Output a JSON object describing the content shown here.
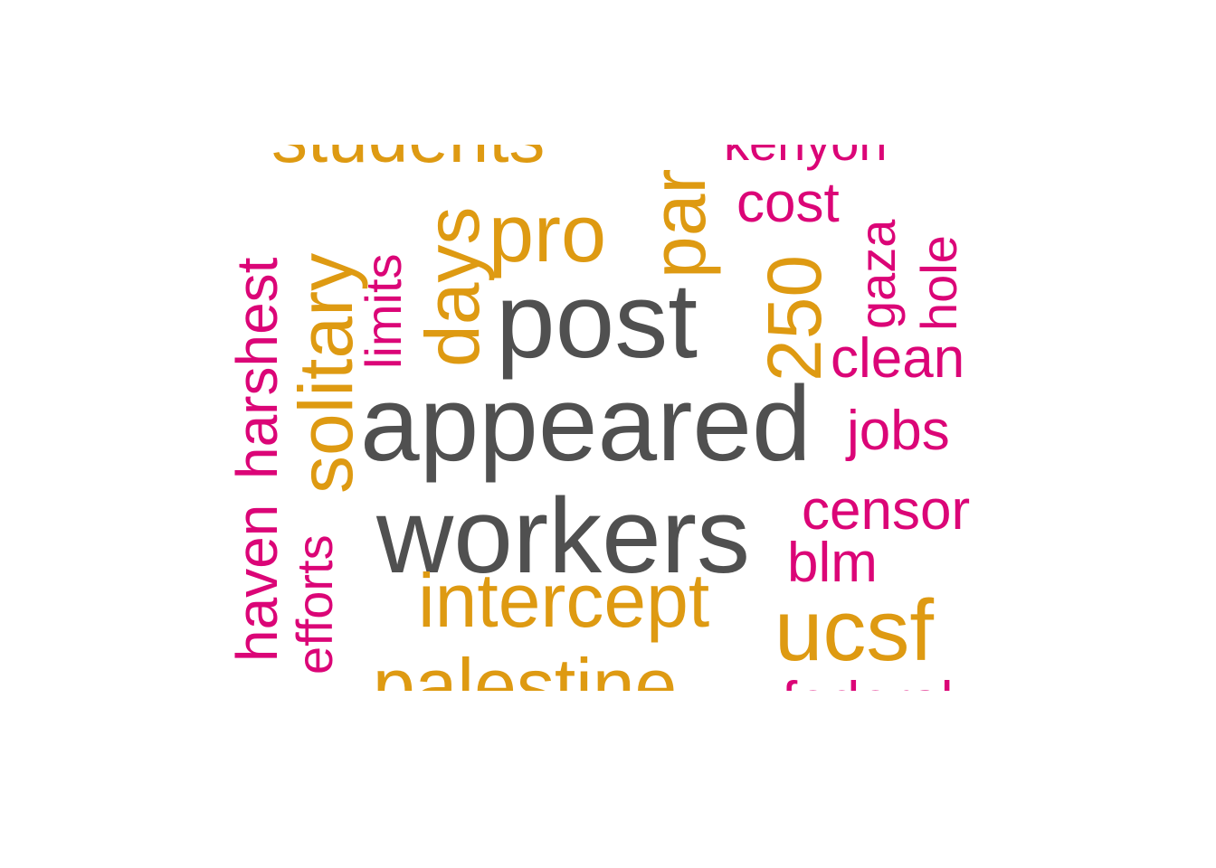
{
  "colors": {
    "dark": "#505050",
    "gold": "#DE9A12",
    "pink": "#DB0577"
  },
  "words": {
    "students": "students",
    "partial": "par",
    "kenyon": "kenyon",
    "cost": "cost",
    "gaza": "gaza",
    "hole": "hole",
    "pro": "pro",
    "days": "days",
    "limits": "limits",
    "solitary": "solitary",
    "harshest": "harshest",
    "post": "post",
    "number_250": "250",
    "clean": "clean",
    "appeared": "appeared",
    "jobs": "jobs",
    "workers": "workers",
    "censor": "censor",
    "blm": "blm",
    "haven": "haven",
    "efforts": "efforts",
    "intercept": "intercept",
    "ucsf": "ucsf",
    "palestine": "palestine",
    "federal": "federal"
  }
}
